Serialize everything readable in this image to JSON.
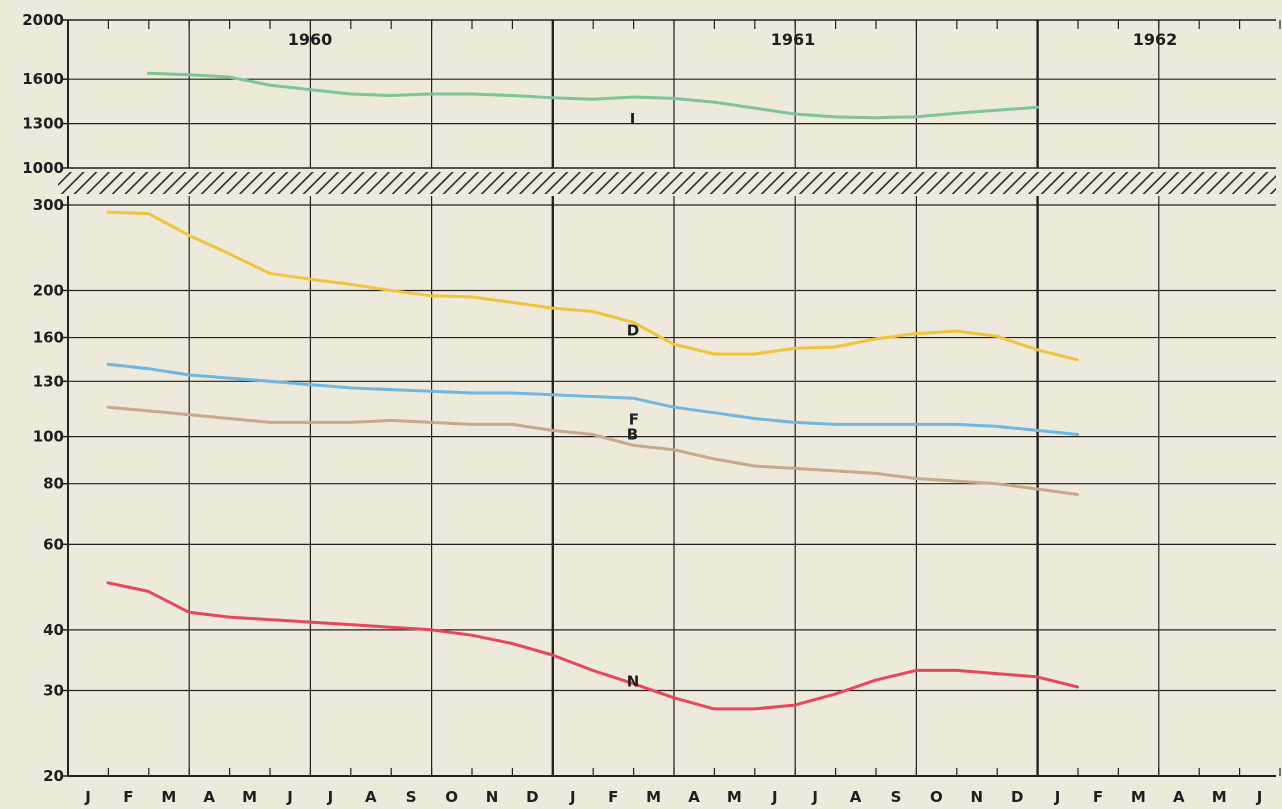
{
  "chart_data": [
    {
      "type": "line",
      "panel": "upper",
      "scale": "linear",
      "ylim": [
        1000,
        2000
      ],
      "y_ticks": [
        "2000",
        "1600",
        "1300",
        "1000"
      ],
      "years": [
        "1960",
        "1961",
        "1962"
      ],
      "series": [
        {
          "name": "I",
          "color": "#7fc59a",
          "points": [
            [
              "1960-02",
              1640
            ],
            [
              "1960-03",
              1630
            ],
            [
              "1960-04",
              1615
            ],
            [
              "1960-05",
              1560
            ],
            [
              "1960-06",
              1530
            ],
            [
              "1960-07",
              1500
            ],
            [
              "1960-08",
              1490
            ],
            [
              "1960-09",
              1500
            ],
            [
              "1960-10",
              1500
            ],
            [
              "1960-11",
              1490
            ],
            [
              "1960-12",
              1475
            ],
            [
              "1961-01",
              1465
            ],
            [
              "1961-02",
              1480
            ],
            [
              "1961-03",
              1470
            ],
            [
              "1961-04",
              1445
            ],
            [
              "1961-05",
              1405
            ],
            [
              "1961-06",
              1365
            ],
            [
              "1961-07",
              1345
            ],
            [
              "1961-08",
              1340
            ],
            [
              "1961-09",
              1345
            ],
            [
              "1961-10",
              1370
            ],
            [
              "1961-11",
              1390
            ],
            [
              "1961-12",
              1410
            ]
          ]
        }
      ]
    },
    {
      "type": "line",
      "panel": "lower",
      "scale": "log",
      "ylim": [
        20,
        300
      ],
      "y_ticks": [
        "300",
        "200",
        "160",
        "130",
        "100",
        "80",
        "60",
        "40",
        "30",
        "20"
      ],
      "months": [
        "J",
        "F",
        "M",
        "A",
        "M",
        "J",
        "J",
        "A",
        "S",
        "O",
        "N",
        "D",
        "J",
        "F",
        "M",
        "A",
        "M",
        "J",
        "J",
        "A",
        "S",
        "O",
        "N",
        "D",
        "J",
        "F",
        "M",
        "A",
        "M",
        "J"
      ],
      "series": [
        {
          "name": "D",
          "color": "#f0c43c",
          "points": [
            [
              "1960-01",
              290
            ],
            [
              "1960-02",
              288
            ],
            [
              "1960-03",
              260
            ],
            [
              "1960-04",
              238
            ],
            [
              "1960-05",
              217
            ],
            [
              "1960-06",
              211
            ],
            [
              "1960-07",
              206
            ],
            [
              "1960-08",
              200
            ],
            [
              "1960-09",
              195
            ],
            [
              "1960-10",
              194
            ],
            [
              "1960-11",
              189
            ],
            [
              "1960-12",
              184
            ],
            [
              "1961-01",
              181
            ],
            [
              "1961-02",
              172
            ],
            [
              "1961-03",
              155
            ],
            [
              "1961-04",
              148
            ],
            [
              "1961-05",
              148
            ],
            [
              "1961-06",
              152
            ],
            [
              "1961-07",
              153
            ],
            [
              "1961-08",
              159
            ],
            [
              "1961-09",
              163
            ],
            [
              "1961-10",
              165
            ],
            [
              "1961-11",
              161
            ],
            [
              "1961-12",
              151
            ],
            [
              "1962-01",
              144
            ]
          ]
        },
        {
          "name": "F",
          "color": "#6fb7e0",
          "points": [
            [
              "1960-01",
              141
            ],
            [
              "1960-02",
              138
            ],
            [
              "1960-03",
              134
            ],
            [
              "1960-04",
              132
            ],
            [
              "1960-05",
              130
            ],
            [
              "1960-06",
              128
            ],
            [
              "1960-07",
              126
            ],
            [
              "1960-08",
              125
            ],
            [
              "1960-09",
              124
            ],
            [
              "1960-10",
              123
            ],
            [
              "1960-11",
              123
            ],
            [
              "1960-12",
              122
            ],
            [
              "1961-01",
              121
            ],
            [
              "1961-02",
              120
            ],
            [
              "1961-03",
              115
            ],
            [
              "1961-04",
              112
            ],
            [
              "1961-05",
              109
            ],
            [
              "1961-06",
              107
            ],
            [
              "1961-07",
              106
            ],
            [
              "1961-08",
              106
            ],
            [
              "1961-09",
              106
            ],
            [
              "1961-10",
              106
            ],
            [
              "1961-11",
              105
            ],
            [
              "1961-12",
              103
            ],
            [
              "1962-01",
              101
            ]
          ]
        },
        {
          "name": "B",
          "color": "#c9a88e",
          "points": [
            [
              "1960-01",
              115
            ],
            [
              "1960-02",
              113
            ],
            [
              "1960-03",
              111
            ],
            [
              "1960-04",
              109
            ],
            [
              "1960-05",
              107
            ],
            [
              "1960-06",
              107
            ],
            [
              "1960-07",
              107
            ],
            [
              "1960-08",
              108
            ],
            [
              "1960-09",
              107
            ],
            [
              "1960-10",
              106
            ],
            [
              "1960-11",
              106
            ],
            [
              "1960-12",
              103
            ],
            [
              "1961-01",
              101
            ],
            [
              "1961-02",
              96
            ],
            [
              "1961-03",
              94
            ],
            [
              "1961-04",
              90
            ],
            [
              "1961-05",
              87
            ],
            [
              "1961-06",
              86
            ],
            [
              "1961-07",
              85
            ],
            [
              "1961-08",
              84
            ],
            [
              "1961-09",
              82
            ],
            [
              "1961-10",
              81
            ],
            [
              "1961-11",
              80
            ],
            [
              "1961-12",
              78
            ],
            [
              "1962-01",
              76
            ]
          ]
        },
        {
          "name": "N",
          "color": "#e8475a",
          "points": [
            [
              "1960-01",
              50
            ],
            [
              "1960-02",
              48
            ],
            [
              "1960-03",
              43.5
            ],
            [
              "1960-04",
              42.5
            ],
            [
              "1960-05",
              42
            ],
            [
              "1960-06",
              41.5
            ],
            [
              "1960-07",
              41
            ],
            [
              "1960-08",
              40.5
            ],
            [
              "1960-09",
              40
            ],
            [
              "1960-10",
              39
            ],
            [
              "1960-11",
              37.5
            ],
            [
              "1960-12",
              35.5
            ],
            [
              "1961-01",
              33
            ],
            [
              "1961-02",
              31
            ],
            [
              "1961-03",
              29
            ],
            [
              "1961-04",
              27.5
            ],
            [
              "1961-05",
              27.5
            ],
            [
              "1961-06",
              28
            ],
            [
              "1961-07",
              29.5
            ],
            [
              "1961-08",
              31.5
            ],
            [
              "1961-09",
              33
            ],
            [
              "1961-10",
              33
            ],
            [
              "1961-11",
              32.5
            ],
            [
              "1961-12",
              32
            ],
            [
              "1962-01",
              30.5
            ]
          ]
        }
      ]
    }
  ]
}
